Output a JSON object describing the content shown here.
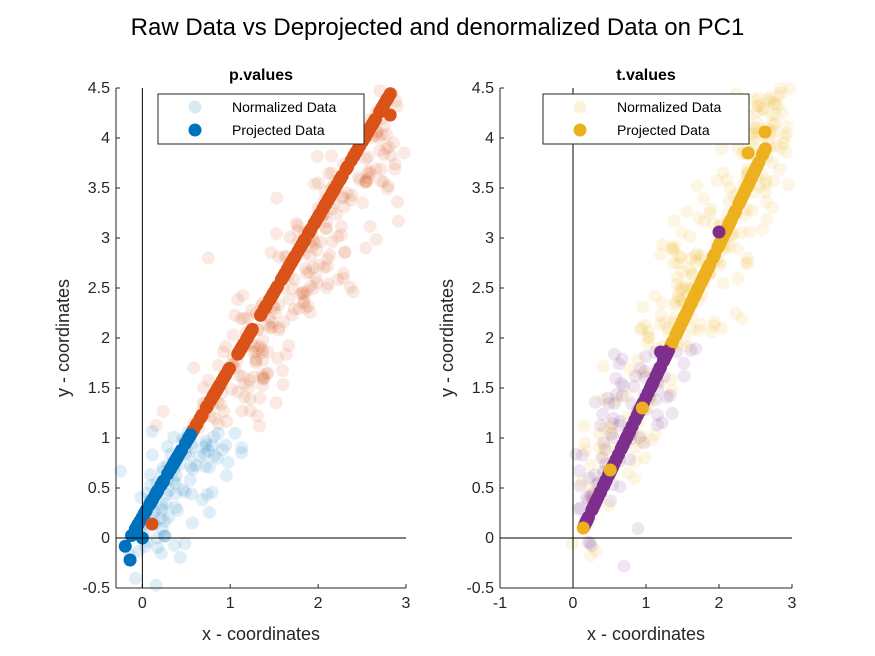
{
  "figure": {
    "title": "Raw Data vs Deprojected and denormalized Data on PC1"
  },
  "chart_data": [
    {
      "type": "scatter",
      "title": "p.values",
      "xlabel": "x - coordinates",
      "ylabel": "y - coordinates",
      "xlim": [
        -0.3,
        3
      ],
      "ylim": [
        -0.5,
        4.5
      ],
      "xticks": [
        0,
        1,
        2,
        3
      ],
      "yticks": [
        -0.5,
        0,
        0.5,
        1,
        1.5,
        2,
        2.5,
        3,
        3.5,
        4,
        4.5
      ],
      "xtick_labels": [
        "0",
        "1",
        "2",
        "3"
      ],
      "ytick_labels": [
        "-0.5",
        "0",
        "0.5",
        "1",
        "1.5",
        "2",
        "2.5",
        "3",
        "3.5",
        "4",
        "4.5"
      ],
      "grid": false,
      "legend_position": "top",
      "legend": [
        "Normalized Data",
        "Projected Data"
      ],
      "colors": {
        "low": "#0072BD",
        "high": "#D95319"
      },
      "split_threshold_y": 1.08,
      "scatter_y_over_x": 1.45,
      "scatter_intercept": 0.02,
      "scatter_noise": 0.42,
      "projection": {
        "x0": -0.14,
        "y0": 0.0,
        "slope": 1.5,
        "t_min": -0.07,
        "t_max": 2.98
      },
      "series": [
        {
          "name": "Normalized Data",
          "style": "translucent"
        },
        {
          "name": "Projected Data",
          "style": "solid"
        }
      ],
      "sample_points": [
        {
          "x": -0.14,
          "y": -0.22
        },
        {
          "x": 0.0,
          "y": 0.0
        },
        {
          "x": 0.11,
          "y": 0.14
        },
        {
          "x": 0.72,
          "y": 0.97
        },
        {
          "x": 1.5,
          "y": 2.3
        },
        {
          "x": 2.82,
          "y": 4.23
        },
        {
          "x": 2.98,
          "y": 3.85
        },
        {
          "x": -0.25,
          "y": 0.67
        },
        {
          "x": 0.75,
          "y": 2.8
        }
      ]
    },
    {
      "type": "scatter",
      "title": "t.values",
      "xlabel": "x - coordinates",
      "ylabel": "y - coordinates",
      "xlim": [
        -1,
        3
      ],
      "ylim": [
        -0.5,
        4.5
      ],
      "xticks": [
        -1,
        0,
        1,
        2,
        3
      ],
      "yticks": [
        -0.5,
        0,
        0.5,
        1,
        1.5,
        2,
        2.5,
        3,
        3.5,
        4,
        4.5
      ],
      "xtick_labels": [
        "-1",
        "0",
        "1",
        "2",
        "3"
      ],
      "ytick_labels": [
        "-0.5",
        "0",
        "0.5",
        "1",
        "1.5",
        "2",
        "2.5",
        "3",
        "3.5",
        "4",
        "4.5"
      ],
      "grid": false,
      "legend_position": "top",
      "legend": [
        "Normalized Data",
        "Projected Data"
      ],
      "colors": {
        "yellow": "#EDB120",
        "purple": "#7E2F8E"
      },
      "scatter_y_over_x": 1.45,
      "scatter_intercept": 0.15,
      "scatter_noise": 0.45,
      "projection": {
        "x0": 0.14,
        "y0": 0.1,
        "slope": 1.52,
        "t_min": 0.0,
        "t_max": 2.5
      },
      "series": [
        {
          "name": "Normalized Data",
          "style": "translucent"
        },
        {
          "name": "Projected Data",
          "style": "solid"
        }
      ],
      "sample_points": [
        {
          "x": 0.14,
          "y": 0.1
        },
        {
          "x": 0.2,
          "y": 0.15
        },
        {
          "x": 0.51,
          "y": 0.68
        },
        {
          "x": 1.2,
          "y": 1.86
        },
        {
          "x": 2.0,
          "y": 3.06
        },
        {
          "x": 2.4,
          "y": 3.85
        },
        {
          "x": 2.63,
          "y": 4.06
        },
        {
          "x": 0.7,
          "y": -0.28
        },
        {
          "x": 2.95,
          "y": 3.53
        }
      ]
    }
  ]
}
